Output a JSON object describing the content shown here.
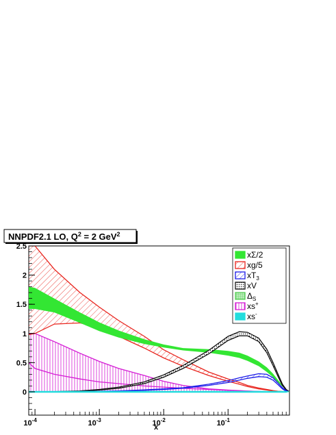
{
  "chart_data": {
    "type": "area",
    "title_main": "NNPDF2.1 LO, Q",
    "title_sup1": "2",
    "title_mid": " = 2 GeV",
    "title_sup2": "2",
    "xlabel": "x",
    "ylabel": "",
    "xscale": "log",
    "xlim": [
      8e-05,
      0.9
    ],
    "ylim": [
      -0.4,
      2.5
    ],
    "grid": false,
    "legend_position": "top-right",
    "x_ticks": [
      {
        "base": "10",
        "exp": "-4",
        "value": 0.0001
      },
      {
        "base": "10",
        "exp": "-3",
        "value": 0.001
      },
      {
        "base": "10",
        "exp": "-2",
        "value": 0.01
      },
      {
        "base": "10",
        "exp": "-1",
        "value": 0.1
      }
    ],
    "y_ticks": [
      {
        "label": "0",
        "value": 0
      },
      {
        "label": "0.5",
        "value": 0.5
      },
      {
        "label": "1",
        "value": 1
      },
      {
        "label": "1.5",
        "value": 1.5
      },
      {
        "label": "2",
        "value": 2
      },
      {
        "label": "2.5",
        "value": 2.5
      }
    ],
    "x": [
      8e-05,
      0.0001,
      0.0002,
      0.0005,
      0.001,
      0.002,
      0.005,
      0.01,
      0.02,
      0.05,
      0.1,
      0.15,
      0.2,
      0.3,
      0.4,
      0.5,
      0.6,
      0.7,
      0.8,
      0.9
    ],
    "series": [
      {
        "key": "xsigma",
        "legend": "xΣ/2",
        "color": "#33e633",
        "style": "solid",
        "lower": [
          1.42,
          1.42,
          1.36,
          1.18,
          1.04,
          0.93,
          0.82,
          0.76,
          0.71,
          0.67,
          0.62,
          0.58,
          0.53,
          0.44,
          0.34,
          0.25,
          0.16,
          0.09,
          0.04,
          0.0
        ],
        "upper": [
          1.8,
          1.78,
          1.6,
          1.36,
          1.19,
          1.05,
          0.9,
          0.81,
          0.75,
          0.73,
          0.7,
          0.67,
          0.62,
          0.52,
          0.42,
          0.31,
          0.2,
          0.11,
          0.05,
          0.0
        ]
      },
      {
        "key": "xg",
        "legend": "xg/5",
        "color": "#e8231c",
        "style": "hatch-diag",
        "lower": [
          0.98,
          1.0,
          1.16,
          1.18,
          1.1,
          0.95,
          0.75,
          0.58,
          0.44,
          0.28,
          0.18,
          0.13,
          0.09,
          0.05,
          0.03,
          0.015,
          0.008,
          0.004,
          0.002,
          0.0
        ],
        "upper": [
          2.5,
          2.5,
          2.1,
          1.7,
          1.45,
          1.22,
          0.95,
          0.72,
          0.55,
          0.34,
          0.22,
          0.16,
          0.11,
          0.065,
          0.04,
          0.02,
          0.01,
          0.005,
          0.002,
          0.0
        ]
      },
      {
        "key": "xt3",
        "legend": "xT",
        "legend_sub": "3",
        "color": "#1c1ce8",
        "style": "hatch-diag",
        "lower": [
          0.0,
          0.0,
          0.0,
          0.003,
          0.006,
          0.012,
          0.025,
          0.04,
          0.06,
          0.11,
          0.16,
          0.2,
          0.23,
          0.26,
          0.25,
          0.2,
          0.12,
          0.05,
          0.01,
          0.0
        ],
        "upper": [
          0.0,
          0.0,
          0.0,
          0.005,
          0.009,
          0.016,
          0.032,
          0.05,
          0.07,
          0.13,
          0.19,
          0.24,
          0.27,
          0.31,
          0.3,
          0.24,
          0.15,
          0.07,
          0.02,
          0.0
        ]
      },
      {
        "key": "xv",
        "legend": "xV",
        "color": "#111111",
        "style": "dots",
        "lower": [
          0.0,
          0.0,
          0.002,
          0.01,
          0.03,
          0.06,
          0.14,
          0.25,
          0.4,
          0.65,
          0.88,
          0.96,
          0.96,
          0.86,
          0.67,
          0.45,
          0.26,
          0.11,
          0.03,
          0.0
        ],
        "upper": [
          0.0,
          0.0,
          0.004,
          0.015,
          0.04,
          0.08,
          0.17,
          0.29,
          0.45,
          0.71,
          0.95,
          1.03,
          1.02,
          0.92,
          0.73,
          0.5,
          0.3,
          0.13,
          0.04,
          0.0
        ]
      },
      {
        "key": "deltas",
        "legend": "Δ",
        "legend_sub": "S",
        "color": "#55cc55",
        "style": "grid",
        "lower": [
          0.0,
          0.0,
          0.0,
          0.0,
          0.0,
          0.0,
          0.0,
          0.0,
          0.0,
          0.0,
          0.0,
          0.0,
          0.0,
          0.0,
          0.0,
          0.0,
          0.0,
          0.0,
          0.0,
          0.0
        ],
        "upper": [
          0.0,
          0.0,
          0.0,
          0.0,
          0.0,
          0.0,
          0.0,
          0.0,
          0.0,
          0.0,
          0.0,
          0.0,
          0.0,
          0.0,
          0.0,
          0.0,
          0.0,
          0.0,
          0.0,
          0.0
        ]
      },
      {
        "key": "xsplus",
        "legend": "xs",
        "legend_sup": "+",
        "color": "#d41cd4",
        "style": "hatch-vert",
        "lower": [
          0.0,
          0.0,
          0.0,
          0.0,
          0.0,
          0.0,
          0.0,
          0.0,
          0.0,
          0.0,
          0.0,
          0.0,
          0.0,
          0.0,
          0.0,
          0.0,
          0.0,
          0.0,
          0.0,
          0.0
        ],
        "upper": [
          1.0,
          1.0,
          0.86,
          0.66,
          0.52,
          0.4,
          0.28,
          0.18,
          0.11,
          0.05,
          0.03,
          0.02,
          0.013,
          0.006,
          0.003,
          0.001,
          0.0,
          0.0,
          0.0,
          0.0
        ],
        "central": [
          0.5,
          0.4,
          0.3,
          0.22,
          0.17,
          0.14,
          0.1,
          0.08,
          0.06,
          0.04,
          0.025,
          0.018,
          0.012,
          0.006,
          0.003,
          0.001,
          0.0,
          0.0,
          0.0,
          0.0
        ]
      },
      {
        "key": "xsminus",
        "legend": "xs",
        "legend_sup": "-",
        "color": "#22dddd",
        "style": "solid",
        "lower": [
          -0.015,
          -0.015,
          -0.015,
          -0.015,
          -0.015,
          -0.015,
          -0.015,
          -0.015,
          -0.015,
          -0.015,
          -0.015,
          -0.015,
          -0.015,
          -0.015,
          -0.015,
          -0.015,
          -0.015,
          -0.015,
          -0.015,
          0.0
        ],
        "upper": [
          0.015,
          0.015,
          0.015,
          0.015,
          0.015,
          0.015,
          0.015,
          0.015,
          0.015,
          0.015,
          0.015,
          0.015,
          0.015,
          0.015,
          0.015,
          0.015,
          0.015,
          0.015,
          0.015,
          0.0
        ]
      }
    ]
  }
}
